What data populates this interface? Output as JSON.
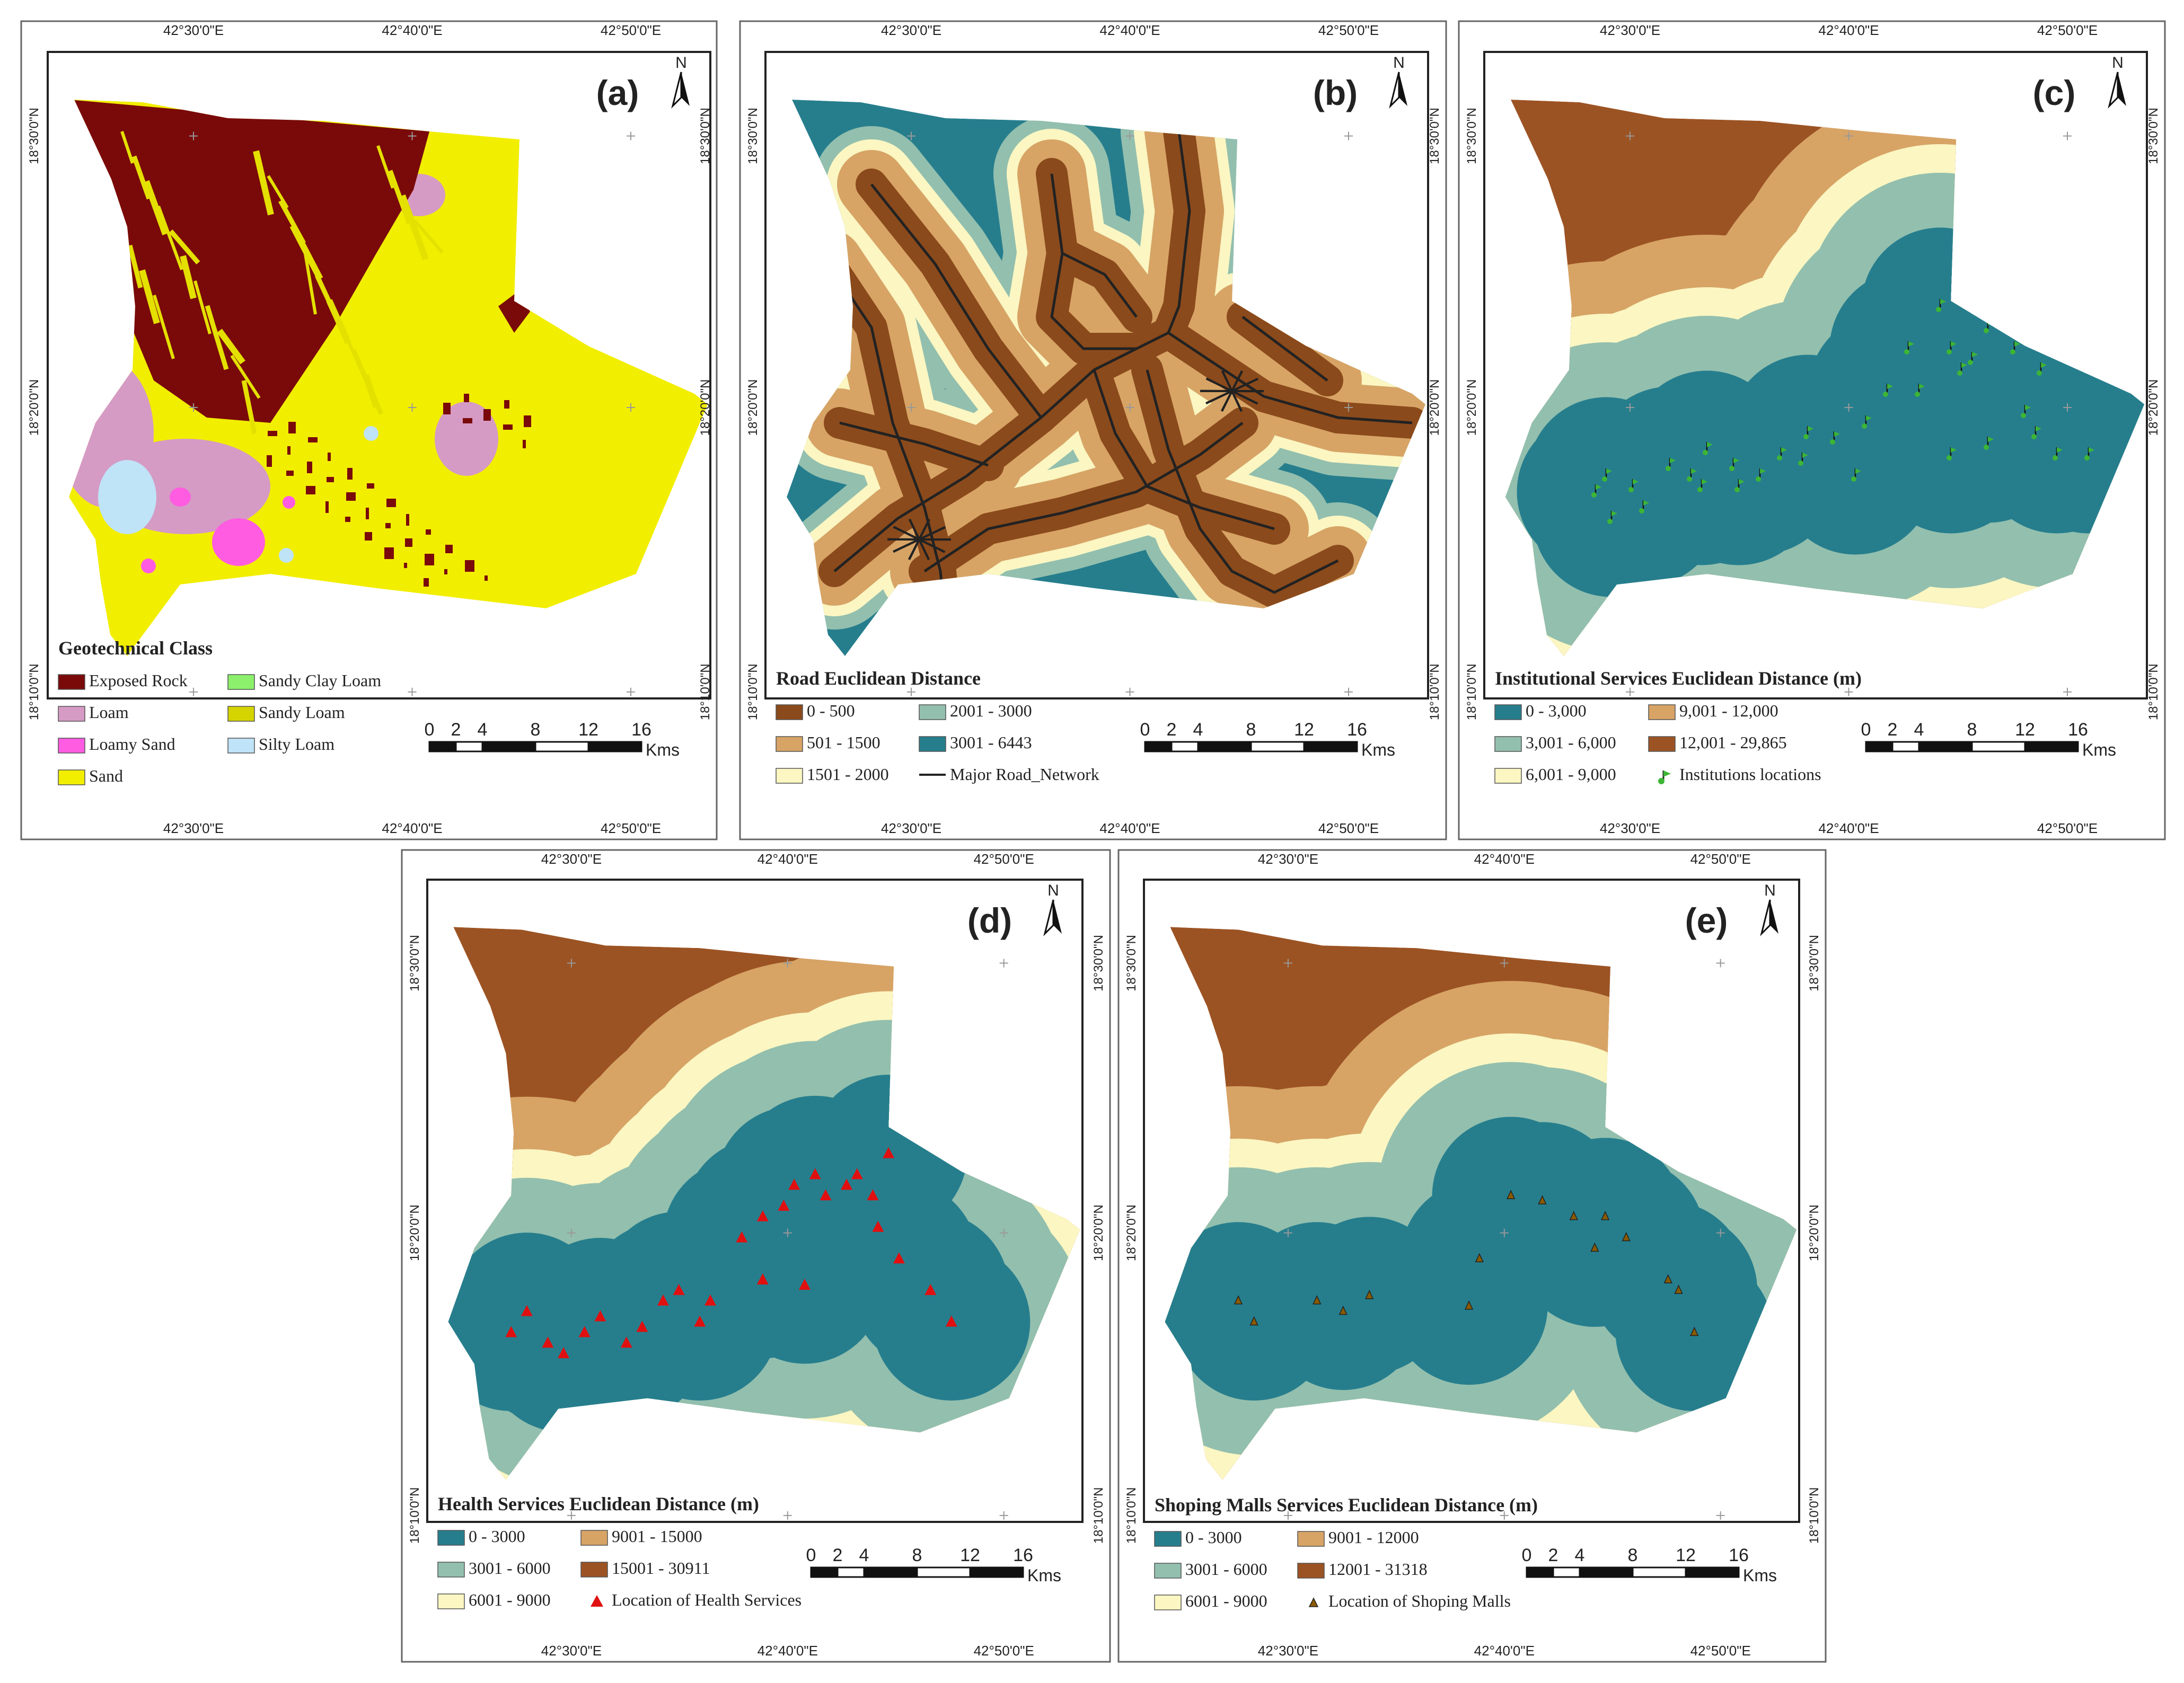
{
  "figure": {
    "panels": [
      {
        "id": "a",
        "label": "(a)",
        "legend_title": "Geotechnical Class",
        "legend": [
          {
            "label": "Exposed Rock",
            "color": "#7a0a0a"
          },
          {
            "label": "Sandy Clay Loam",
            "color": "#8cf06c"
          },
          {
            "label": "Loam",
            "color": "#d59bc4"
          },
          {
            "label": "Sandy Loam",
            "color": "#d6d400"
          },
          {
            "label": "Loamy Sand",
            "color": "#ff5ce1"
          },
          {
            "label": "Silty Loam",
            "color": "#bfe3f7"
          },
          {
            "label": "Sand",
            "color": "#f2ee00"
          }
        ]
      },
      {
        "id": "b",
        "label": "(b)",
        "legend_title": "Road Euclidean Distance",
        "legend": [
          {
            "label": "0 - 500",
            "color": "#8b4a1b"
          },
          {
            "label": "2001 - 3000",
            "color": "#93bfae"
          },
          {
            "label": "501 - 1500",
            "color": "#d7a466"
          },
          {
            "label": "3001 - 6443",
            "color": "#267e8d"
          },
          {
            "label": "1501 - 2000",
            "color": "#fbf6c2"
          },
          {
            "label": "Major Road_Network",
            "color": "#222222",
            "kind": "line"
          }
        ]
      },
      {
        "id": "c",
        "label": "(c)",
        "legend_title": "Institutional Services Euclidean Distance (m)",
        "legend": [
          {
            "label": "0 - 3,000",
            "color": "#267e8d"
          },
          {
            "label": "9,001 - 12,000",
            "color": "#d7a466"
          },
          {
            "label": "3,001 - 6,000",
            "color": "#93bfae"
          },
          {
            "label": "12,001 - 29,865",
            "color": "#9c5323"
          },
          {
            "label": "6,001 - 9,000",
            "color": "#fbf6c2"
          },
          {
            "label": "Institutions locations",
            "color": "#3db535",
            "kind": "pin"
          }
        ]
      },
      {
        "id": "d",
        "label": "(d)",
        "legend_title": "Health Services Euclidean Distance (m)",
        "legend": [
          {
            "label": "0 - 3000",
            "color": "#267e8d"
          },
          {
            "label": "9001 - 15000",
            "color": "#d7a466"
          },
          {
            "label": "3001 - 6000",
            "color": "#93bfae"
          },
          {
            "label": "15001 - 30911",
            "color": "#9c5323"
          },
          {
            "label": "6001 - 9000",
            "color": "#fbf6c2"
          },
          {
            "label": "Location of Health Services",
            "color": "#e01010",
            "kind": "triangle"
          }
        ]
      },
      {
        "id": "e",
        "label": "(e)",
        "legend_title": "Shoping Malls Services Euclidean Distance (m)",
        "legend": [
          {
            "label": "0 - 3000",
            "color": "#267e8d"
          },
          {
            "label": "9001 - 12000",
            "color": "#d7a466"
          },
          {
            "label": "3001 - 6000",
            "color": "#93bfae"
          },
          {
            "label": "12001 - 31318",
            "color": "#9c5323"
          },
          {
            "label": "6001 - 9000",
            "color": "#fbf6c2"
          },
          {
            "label": "Location of Shoping Malls",
            "color": "#8a5a00",
            "kind": "smalltri"
          }
        ]
      }
    ],
    "north_label": "N",
    "scale_ticks": [
      "0",
      "2",
      "4",
      "8",
      "12",
      "16"
    ],
    "scale_unit": "Kms",
    "lon_ticks": [
      "42°30'0\"E",
      "42°40'0\"E",
      "42°50'0\"E"
    ],
    "lat_ticks": [
      "18°30'0\"N",
      "18°20'0\"N",
      "18°10'0\"N"
    ]
  }
}
